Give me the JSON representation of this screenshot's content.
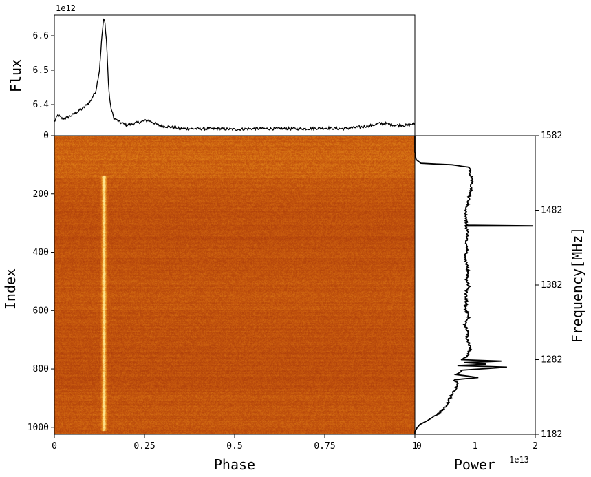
{
  "chart_data": [
    {
      "type": "line",
      "panel": "profile",
      "ylabel": "Flux",
      "y_exponent": "1e12",
      "y_ticks": [
        "6.4",
        "6.5",
        "6.6"
      ],
      "y_tick_values": [
        6.4,
        6.5,
        6.6
      ],
      "ylim": [
        6.31,
        6.66
      ],
      "xlim": [
        0,
        1
      ],
      "x": [
        0.0,
        0.01,
        0.02,
        0.03,
        0.05,
        0.08,
        0.1,
        0.115,
        0.125,
        0.132,
        0.137,
        0.14,
        0.145,
        0.15,
        0.155,
        0.165,
        0.18,
        0.2,
        0.22,
        0.24,
        0.26,
        0.27,
        0.29,
        0.32,
        0.35,
        0.38,
        0.4,
        0.45,
        0.5,
        0.55,
        0.6,
        0.65,
        0.7,
        0.75,
        0.8,
        0.85,
        0.88,
        0.9,
        0.92,
        0.95,
        0.98,
        1.0
      ],
      "y": [
        6.35,
        6.37,
        6.36,
        6.36,
        6.37,
        6.39,
        6.41,
        6.44,
        6.5,
        6.6,
        6.65,
        6.64,
        6.58,
        6.46,
        6.4,
        6.36,
        6.35,
        6.34,
        6.345,
        6.35,
        6.355,
        6.35,
        6.34,
        6.335,
        6.33,
        6.33,
        6.33,
        6.33,
        6.328,
        6.33,
        6.33,
        6.33,
        6.33,
        6.332,
        6.33,
        6.335,
        6.34,
        6.345,
        6.345,
        6.34,
        6.34,
        6.345
      ]
    },
    {
      "type": "heatmap",
      "panel": "waterfall",
      "xlabel": "Phase",
      "ylabel": "Index",
      "x_ticks": [
        "0",
        "0.25",
        "0.5",
        "0.75",
        "1"
      ],
      "x_tick_values": [
        0,
        0.25,
        0.5,
        0.75,
        1
      ],
      "y_ticks": [
        "0",
        "200",
        "400",
        "600",
        "800",
        "1000"
      ],
      "y_tick_values": [
        0,
        200,
        400,
        600,
        800,
        1000
      ],
      "xlim": [
        0,
        1
      ],
      "ylim": [
        0,
        1024
      ],
      "colormap": [
        "#a8380a",
        "#c85a0e",
        "#e8901c",
        "#ffe690"
      ],
      "pulse_phase": 0.137,
      "signal_index_range": [
        135,
        1010
      ],
      "bright_band_index_range": [
        0,
        145
      ]
    },
    {
      "type": "line",
      "panel": "bandpass",
      "xlabel": "Power",
      "x_exponent": "1e13",
      "x_ticks": [
        "0",
        "1",
        "2"
      ],
      "x_tick_values": [
        0,
        1,
        2
      ],
      "xlim": [
        0,
        2
      ],
      "ylabel": "Frequency[MHz]",
      "y_ticks": [
        "1582",
        "1482",
        "1382",
        "1282",
        "1182"
      ],
      "y_tick_values": [
        1582,
        1482,
        1382,
        1282,
        1182
      ],
      "ylim": [
        1182,
        1582
      ],
      "freq": [
        1582,
        1560,
        1550,
        1545,
        1543,
        1540,
        1530,
        1520,
        1510,
        1500,
        1490,
        1480,
        1470,
        1462,
        1461.2,
        1461,
        1460.8,
        1460,
        1450,
        1440,
        1430,
        1420,
        1410,
        1400,
        1390,
        1380,
        1370,
        1360,
        1350,
        1340,
        1330,
        1320,
        1310,
        1300,
        1292,
        1285,
        1282,
        1280,
        1278,
        1276,
        1274,
        1272,
        1268,
        1262,
        1258,
        1255,
        1250,
        1240,
        1230,
        1220,
        1210,
        1200,
        1195,
        1190,
        1186,
        1182
      ],
      "power": [
        0.0,
        0.0,
        0.02,
        0.1,
        0.6,
        0.9,
        0.92,
        0.95,
        0.93,
        0.9,
        0.88,
        0.84,
        0.85,
        0.86,
        1.95,
        1.95,
        0.85,
        0.85,
        0.88,
        0.85,
        0.88,
        0.83,
        0.86,
        0.88,
        0.86,
        0.9,
        0.84,
        0.86,
        0.84,
        0.9,
        0.83,
        0.88,
        0.86,
        0.92,
        0.9,
        0.85,
        0.75,
        1.45,
        0.8,
        1.2,
        0.72,
        1.55,
        0.8,
        0.7,
        1.05,
        0.65,
        0.72,
        0.65,
        0.58,
        0.52,
        0.4,
        0.2,
        0.08,
        0.03,
        0.0,
        0.0
      ]
    }
  ]
}
